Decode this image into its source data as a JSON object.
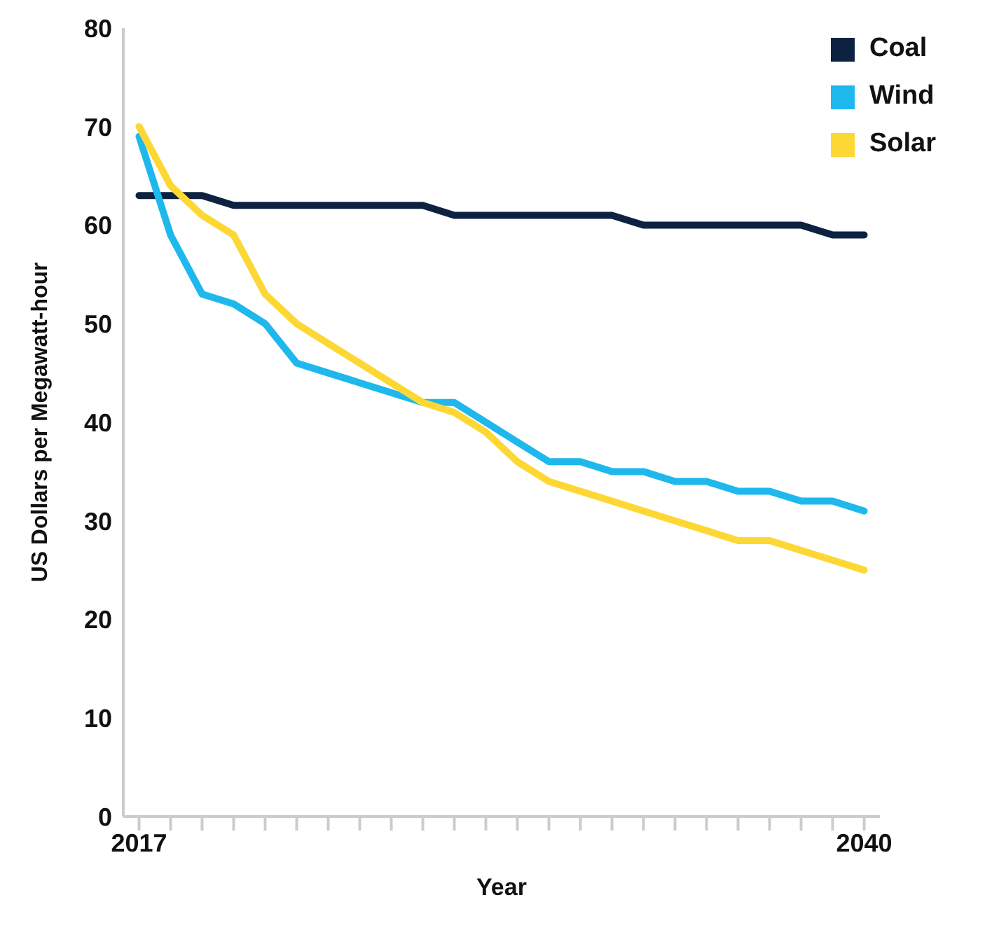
{
  "chart_data": {
    "type": "line",
    "xlabel": "Year",
    "ylabel": "US Dollars per Megawatt-hour",
    "x": [
      2017,
      2018,
      2019,
      2020,
      2021,
      2022,
      2023,
      2024,
      2025,
      2026,
      2027,
      2028,
      2029,
      2030,
      2031,
      2032,
      2033,
      2034,
      2035,
      2036,
      2037,
      2038,
      2039,
      2040
    ],
    "series": [
      {
        "name": "Coal",
        "color": "#0d2240",
        "values": [
          63,
          63,
          63,
          62,
          62,
          62,
          62,
          62,
          62,
          62,
          61,
          61,
          61,
          61,
          61,
          61,
          60,
          60,
          60,
          60,
          60,
          60,
          59,
          59
        ]
      },
      {
        "name": "Wind",
        "color": "#1fb8ec",
        "values": [
          69,
          59,
          53,
          52,
          50,
          46,
          45,
          44,
          43,
          42,
          42,
          40,
          38,
          36,
          36,
          35,
          35,
          34,
          34,
          33,
          33,
          32,
          32,
          31
        ]
      },
      {
        "name": "Solar",
        "color": "#fdd835",
        "values": [
          70,
          64,
          61,
          59,
          53,
          50,
          48,
          46,
          44,
          42,
          41,
          39,
          36,
          34,
          33,
          32,
          31,
          30,
          29,
          28,
          28,
          27,
          26,
          25
        ]
      }
    ],
    "xlim": [
      2016.5,
      2040.5
    ],
    "xticks": [
      2017,
      {
        "value": 2018,
        "label": null
      },
      {
        "value": 2019,
        "label": null
      },
      {
        "value": 2020,
        "label": null
      },
      {
        "value": 2021,
        "label": null
      },
      {
        "value": 2022,
        "label": null
      },
      {
        "value": 2023,
        "label": null
      },
      {
        "value": 2024,
        "label": null
      },
      {
        "value": 2025,
        "label": null
      },
      {
        "value": 2026,
        "label": null
      },
      {
        "value": 2027,
        "label": null
      },
      {
        "value": 2028,
        "label": null
      },
      {
        "value": 2029,
        "label": null
      },
      {
        "value": 2030,
        "label": null
      },
      {
        "value": 2031,
        "label": null
      },
      {
        "value": 2032,
        "label": null
      },
      {
        "value": 2033,
        "label": null
      },
      {
        "value": 2034,
        "label": null
      },
      {
        "value": 2035,
        "label": null
      },
      {
        "value": 2036,
        "label": null
      },
      {
        "value": 2037,
        "label": null
      },
      {
        "value": 2038,
        "label": null
      },
      {
        "value": 2039,
        "label": null
      },
      2040
    ],
    "ylim": [
      0,
      80
    ],
    "yticks": [
      0,
      10,
      20,
      30,
      40,
      50,
      60,
      70,
      80
    ],
    "grid": false,
    "legend": "top right",
    "marker": "none",
    "line_style": "solid"
  }
}
